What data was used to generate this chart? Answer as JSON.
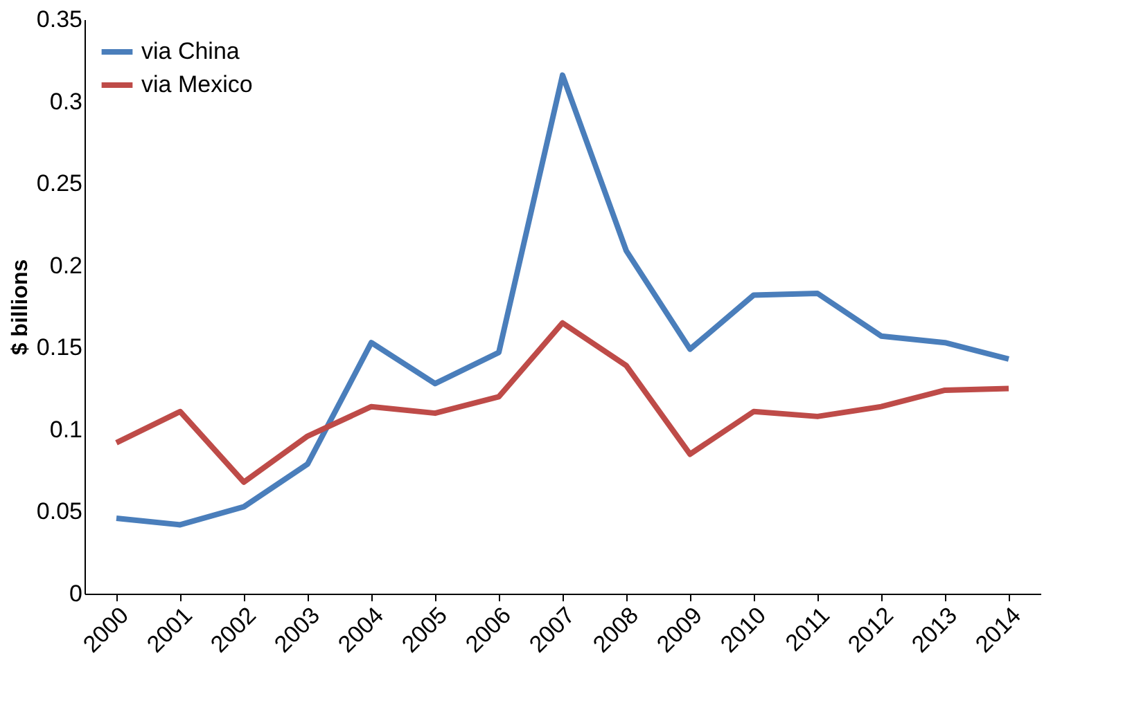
{
  "chart_data": {
    "type": "line",
    "ylabel": "$ billions",
    "categories": [
      "2000",
      "2001",
      "2002",
      "2003",
      "2004",
      "2005",
      "2006",
      "2007",
      "2008",
      "2009",
      "2010",
      "2011",
      "2012",
      "2013",
      "2014"
    ],
    "series": [
      {
        "name": "via China",
        "color": "#4a7ebb",
        "values": [
          0.046,
          0.042,
          0.053,
          0.079,
          0.153,
          0.128,
          0.147,
          0.316,
          0.209,
          0.149,
          0.182,
          0.183,
          0.157,
          0.153,
          0.143
        ]
      },
      {
        "name": "via Mexico",
        "color": "#be4b48",
        "values": [
          0.092,
          0.111,
          0.068,
          0.096,
          0.114,
          0.11,
          0.12,
          0.165,
          0.139,
          0.085,
          0.111,
          0.108,
          0.114,
          0.124,
          0.125
        ]
      }
    ],
    "ylim": [
      0,
      0.35
    ],
    "yticks": [
      0,
      0.05,
      0.1,
      0.15,
      0.2,
      0.25,
      0.3,
      0.35
    ],
    "grid": false,
    "legend": "top left",
    "marker": "none",
    "line_style": "solid"
  }
}
